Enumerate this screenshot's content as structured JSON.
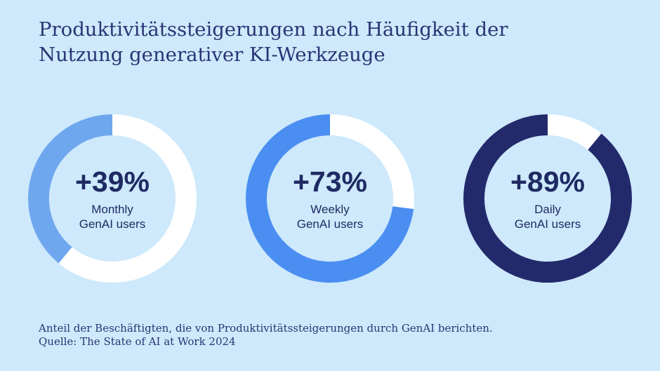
{
  "title_lines": [
    "Produktivitätssteigerungen nach Häufigkeit der",
    "Nutzung generativer KI-Werkzeuge"
  ],
  "chart_data": {
    "type": "pie",
    "variant": "donut",
    "series": [
      {
        "value_label": "+39%",
        "value": 39,
        "label_lines": [
          "Monthly",
          "GenAI users"
        ],
        "color": "#6fa7ef"
      },
      {
        "value_label": "+73%",
        "value": 73,
        "label_lines": [
          "Weekly",
          "GenAI users"
        ],
        "color": "#4b8ef2"
      },
      {
        "value_label": "+89%",
        "value": 89,
        "label_lines": [
          "Daily",
          "GenAI users"
        ],
        "color": "#232a6c"
      }
    ],
    "remainder_color": "#ffffff"
  },
  "footer_lines": [
    "Anteil der Beschäftigten, die von Produktivitätssteigerungen durch GenAI berichten.",
    "Quelle: The State of AI at Work 2024"
  ]
}
